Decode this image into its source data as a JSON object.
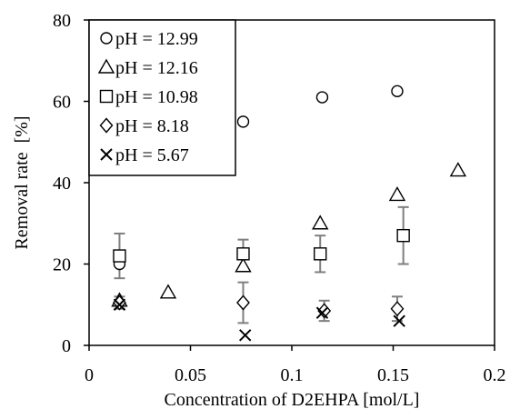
{
  "chart_data": {
    "type": "scatter",
    "xlabel": "Concentration of D2EHPA [mol/L]",
    "ylabel": "Removal rate  [%]",
    "xlim": [
      0,
      0.2
    ],
    "ylim": [
      0,
      80
    ],
    "xticks": [
      "0",
      "0.05",
      "0.1",
      "0.15",
      "0.2"
    ],
    "yticks": [
      "0",
      "20",
      "40",
      "60",
      "80"
    ],
    "xtick_values": [
      0,
      0.05,
      0.1,
      0.15,
      0.2
    ],
    "ytick_values": [
      0,
      20,
      40,
      60,
      80
    ],
    "grid": false,
    "legend_position": "top-left",
    "series": [
      {
        "name": "pH = 12.99",
        "marker": "circle",
        "points": [
          {
            "x": 0.015,
            "y": 20
          },
          {
            "x": 0.076,
            "y": 55
          },
          {
            "x": 0.115,
            "y": 61
          },
          {
            "x": 0.152,
            "y": 62.5
          }
        ]
      },
      {
        "name": "pH = 12.16",
        "marker": "triangle",
        "points": [
          {
            "x": 0.015,
            "y": 11
          },
          {
            "x": 0.039,
            "y": 13
          },
          {
            "x": 0.076,
            "y": 19.5
          },
          {
            "x": 0.114,
            "y": 30
          },
          {
            "x": 0.152,
            "y": 37
          },
          {
            "x": 0.182,
            "y": 43
          }
        ]
      },
      {
        "name": "pH = 10.98",
        "marker": "square",
        "points": [
          {
            "x": 0.015,
            "y": 22,
            "err": 5.5
          },
          {
            "x": 0.076,
            "y": 22.5,
            "err": 3.5
          },
          {
            "x": 0.114,
            "y": 22.5,
            "err": 4.5
          },
          {
            "x": 0.155,
            "y": 27,
            "err": 7
          }
        ]
      },
      {
        "name": "pH = 8.18",
        "marker": "diamond",
        "points": [
          {
            "x": 0.015,
            "y": 10.5,
            "err": 1.5
          },
          {
            "x": 0.076,
            "y": 10.5,
            "err": 5
          },
          {
            "x": 0.116,
            "y": 8.5,
            "err": 2.5
          },
          {
            "x": 0.152,
            "y": 9,
            "err": 3
          }
        ]
      },
      {
        "name": "pH = 5.67",
        "marker": "cross",
        "points": [
          {
            "x": 0.015,
            "y": 10
          },
          {
            "x": 0.077,
            "y": 2.5
          },
          {
            "x": 0.115,
            "y": 8
          },
          {
            "x": 0.153,
            "y": 6
          }
        ]
      }
    ]
  }
}
